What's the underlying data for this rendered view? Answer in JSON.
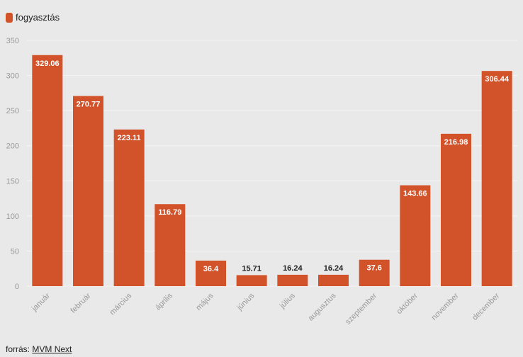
{
  "chart_data": {
    "type": "bar",
    "categories": [
      "január",
      "február",
      "március",
      "április",
      "május",
      "június",
      "július",
      "augusztus",
      "szeptember",
      "október",
      "november",
      "december"
    ],
    "series": [
      {
        "name": "fogyasztás",
        "color": "#d2522a",
        "values": [
          329.06,
          270.77,
          223.11,
          116.79,
          36.4,
          15.71,
          16.24,
          16.24,
          37.6,
          143.66,
          216.98,
          306.44
        ]
      }
    ],
    "data_labels": [
      "329.06",
      "270.77",
      "223.11",
      "116.79",
      "36.4",
      "15.71",
      "16.24",
      "16.24",
      "37.6",
      "143.66",
      "216.98",
      "306.44"
    ],
    "y_ticks": [
      0,
      50,
      100,
      150,
      200,
      250,
      300,
      350
    ],
    "ylim": [
      0,
      350
    ],
    "grid": true,
    "legend_position": "top-left"
  },
  "legend": {
    "label": "fogyasztás"
  },
  "source": {
    "prefix": "forrás:",
    "link_text": "MVM Next"
  },
  "colors": {
    "bar": "#d2522a",
    "background": "#e9e9e9",
    "grid": "#f5f5f5",
    "axis_text": "#9a9a9a"
  }
}
